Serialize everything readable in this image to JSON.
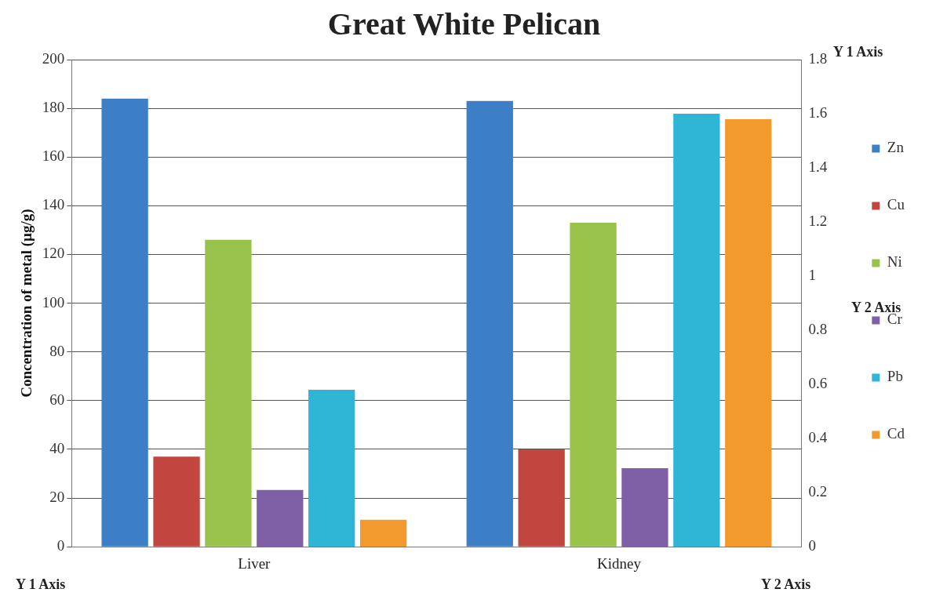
{
  "chart_data": {
    "type": "bar",
    "title": "Great White Pelican",
    "ylabel": "Concentration of metal (µg/g)",
    "categories": [
      "Liver",
      "Kidney"
    ],
    "series": [
      {
        "name": "Zn",
        "color": "#3c7fc6",
        "values": [
          184,
          183
        ]
      },
      {
        "name": "Cu",
        "color": "#c0463f",
        "values": [
          37,
          40
        ]
      },
      {
        "name": "Ni",
        "color": "#98c24a",
        "values": [
          126,
          133
        ]
      },
      {
        "name": "Cr",
        "color": "#7f5fa6",
        "values": [
          0.21,
          0.29
        ],
        "axis": "y2"
      },
      {
        "name": "Pb",
        "color": "#2fb6d6",
        "values": [
          0.58,
          1.6
        ],
        "axis": "y2"
      },
      {
        "name": "Cd",
        "color": "#f39a2e",
        "values": [
          0.1,
          1.58
        ],
        "axis": "y2"
      }
    ],
    "ylim": [
      0,
      200
    ],
    "yticks": [
      0,
      20,
      40,
      60,
      80,
      100,
      120,
      140,
      160,
      180,
      200
    ],
    "y2lim": [
      0,
      1.8
    ],
    "y2ticks": [
      0,
      0.2,
      0.4,
      0.6,
      0.8,
      1,
      1.2,
      1.4,
      1.6,
      1.8
    ],
    "grid": "y",
    "legend": "right",
    "annotations": [
      "Y 1 Axis",
      "Y 1 Axis",
      "Y 2 Axis",
      "Y 2 Axis"
    ]
  }
}
